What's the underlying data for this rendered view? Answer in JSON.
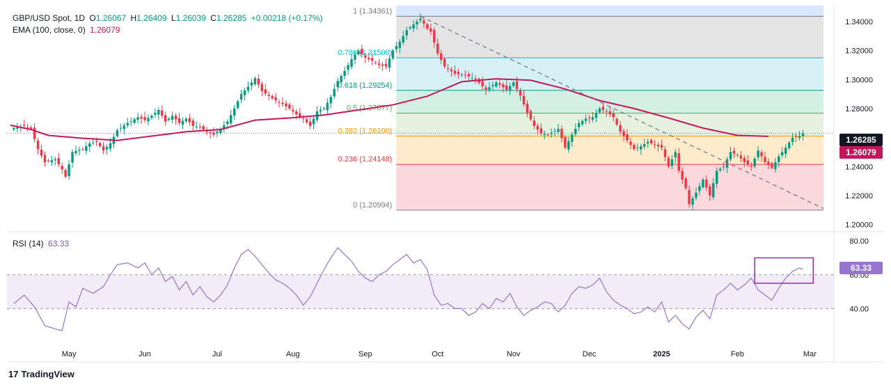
{
  "header": {
    "symbol": "GBP/USD Spot, 1D",
    "open_label": "O",
    "open": "1.26067",
    "high_label": "H",
    "high": "1.26409",
    "low_label": "L",
    "low": "1.26039",
    "close_label": "C",
    "close": "1.26285",
    "change": "+0.00218 (+0.17%)",
    "ema_label": "EMA (100, close, 0)",
    "ema_value": "1.26079"
  },
  "rsi_header": {
    "label": "RSI (14)",
    "value": "63.33"
  },
  "footer": {
    "logo_glyph": "17",
    "brand": "TradingView"
  },
  "colors": {
    "up": "#089981",
    "down": "#f23645",
    "ema": "#c2185b",
    "rsi": "#9575cd",
    "trendline": "#787b86"
  },
  "chart_data": [
    {
      "type": "candlestick",
      "title": "GBP/USD Spot, 1D",
      "ylim": [
        1.195,
        1.351
      ],
      "y_ticks": [
        "1.34000",
        "1.32000",
        "1.30000",
        "1.28000",
        "1.26000",
        "1.24000",
        "1.22000",
        "1.20000"
      ],
      "y_tick_values": [
        1.34,
        1.32,
        1.3,
        1.28,
        1.26,
        1.24,
        1.22,
        1.2
      ],
      "x_labels": [
        "May",
        "Jun",
        "Jul",
        "Aug",
        "Sep",
        "Oct",
        "Nov",
        "Dec",
        "2025",
        "Feb",
        "Mar"
      ],
      "x_label_index": [
        16,
        38,
        59,
        81,
        102,
        123,
        145,
        167,
        188,
        210,
        231
      ],
      "x_range": [
        -2,
        238
      ],
      "last_price": "1.26285",
      "ema_price_label": "1.26079",
      "fibonacci": {
        "start_index": 111,
        "end_index": 235,
        "levels": [
          {
            "label": "1 (1.34361)",
            "ratio": 1,
            "price": 1.34361,
            "line": "#787b86",
            "fill": "#dbe5fb"
          },
          {
            "label": "0.786 (1.31500)",
            "ratio": 0.786,
            "price": 1.315,
            "line": "#00bcd4",
            "fill": "#e4e4e4"
          },
          {
            "label": "0.618 (1.29254)",
            "ratio": 0.618,
            "price": 1.29254,
            "line": "#089981",
            "fill": "#d5f1f6"
          },
          {
            "label": "0.5 (1.27677)",
            "ratio": 0.5,
            "price": 1.27677,
            "line": "#4caf50",
            "fill": "#d4efe3"
          },
          {
            "label": "0.382 (1.26100)",
            "ratio": 0.382,
            "price": 1.261,
            "line": "#ff9800",
            "fill": "#e5f2e0"
          },
          {
            "label": "0.236 (1.24148)",
            "ratio": 0.236,
            "price": 1.24148,
            "line": "#f23645",
            "fill": "#fdebcc"
          },
          {
            "label": "0 (1.20994)",
            "ratio": 0,
            "price": 1.20994,
            "line": "#787b86",
            "fill": "#fbd8dc"
          }
        ],
        "label_colors": [
          "#787b86",
          "#00bcd4",
          "#089981",
          "#4caf50",
          "#ff9800",
          "#f23645",
          "#787b86"
        ]
      },
      "trendline": {
        "from": [
          118,
          1.3436
        ],
        "to": [
          235,
          1.211
        ]
      },
      "ema_points": [
        [
          -1,
          1.2685
        ],
        [
          5,
          1.2655
        ],
        [
          10,
          1.2615
        ],
        [
          20,
          1.2595
        ],
        [
          30,
          1.258
        ],
        [
          40,
          1.261
        ],
        [
          50,
          1.264
        ],
        [
          60,
          1.2655
        ],
        [
          70,
          1.272
        ],
        [
          80,
          1.2735
        ],
        [
          90,
          1.2755
        ],
        [
          100,
          1.279
        ],
        [
          110,
          1.2825
        ],
        [
          120,
          1.2885
        ],
        [
          130,
          1.2985
        ],
        [
          140,
          1.3005
        ],
        [
          150,
          1.2995
        ],
        [
          160,
          1.2935
        ],
        [
          170,
          1.2855
        ],
        [
          180,
          1.28
        ],
        [
          190,
          1.2735
        ],
        [
          200,
          1.2665
        ],
        [
          210,
          1.2615
        ],
        [
          219,
          1.2608
        ]
      ],
      "close_points": [
        [
          0,
          1.2665
        ],
        [
          3,
          1.268
        ],
        [
          5,
          1.266
        ],
        [
          7,
          1.252
        ],
        [
          9,
          1.243
        ],
        [
          12,
          1.245
        ],
        [
          14,
          1.238
        ],
        [
          15,
          1.233
        ],
        [
          17,
          1.25
        ],
        [
          20,
          1.252
        ],
        [
          22,
          1.256
        ],
        [
          24,
          1.257
        ],
        [
          26,
          1.251
        ],
        [
          28,
          1.256
        ],
        [
          30,
          1.265
        ],
        [
          33,
          1.27
        ],
        [
          36,
          1.274
        ],
        [
          38,
          1.272
        ],
        [
          40,
          1.275
        ],
        [
          42,
          1.279
        ],
        [
          44,
          1.271
        ],
        [
          46,
          1.275
        ],
        [
          48,
          1.27
        ],
        [
          50,
          1.273
        ],
        [
          52,
          1.268
        ],
        [
          54,
          1.267
        ],
        [
          56,
          1.264
        ],
        [
          58,
          1.262
        ],
        [
          60,
          1.266
        ],
        [
          62,
          1.271
        ],
        [
          64,
          1.28
        ],
        [
          66,
          1.29
        ],
        [
          68,
          1.295
        ],
        [
          70,
          1.301
        ],
        [
          72,
          1.292
        ],
        [
          75,
          1.287
        ],
        [
          78,
          1.283
        ],
        [
          80,
          1.28
        ],
        [
          82,
          1.276
        ],
        [
          84,
          1.273
        ],
        [
          86,
          1.268
        ],
        [
          88,
          1.278
        ],
        [
          90,
          1.28
        ],
        [
          92,
          1.288
        ],
        [
          94,
          1.299
        ],
        [
          96,
          1.306
        ],
        [
          98,
          1.314
        ],
        [
          100,
          1.32
        ],
        [
          102,
          1.315
        ],
        [
          104,
          1.313
        ],
        [
          106,
          1.31
        ],
        [
          108,
          1.309
        ],
        [
          110,
          1.32
        ],
        [
          112,
          1.326
        ],
        [
          114,
          1.334
        ],
        [
          116,
          1.338
        ],
        [
          118,
          1.342
        ],
        [
          120,
          1.335
        ],
        [
          121,
          1.333
        ],
        [
          123,
          1.318
        ],
        [
          125,
          1.309
        ],
        [
          128,
          1.304
        ],
        [
          131,
          1.303
        ],
        [
          134,
          1.3
        ],
        [
          137,
          1.293
        ],
        [
          140,
          1.298
        ],
        [
          143,
          1.293
        ],
        [
          145,
          1.298
        ],
        [
          147,
          1.289
        ],
        [
          149,
          1.277
        ],
        [
          151,
          1.268
        ],
        [
          153,
          1.263
        ],
        [
          155,
          1.262
        ],
        [
          158,
          1.266
        ],
        [
          160,
          1.253
        ],
        [
          162,
          1.262
        ],
        [
          164,
          1.27
        ],
        [
          166,
          1.273
        ],
        [
          168,
          1.274
        ],
        [
          170,
          1.28
        ],
        [
          172,
          1.278
        ],
        [
          174,
          1.274
        ],
        [
          176,
          1.264
        ],
        [
          178,
          1.258
        ],
        [
          180,
          1.252
        ],
        [
          182,
          1.254
        ],
        [
          184,
          1.257
        ],
        [
          186,
          1.255
        ],
        [
          188,
          1.253
        ],
        [
          190,
          1.24
        ],
        [
          192,
          1.25
        ],
        [
          193,
          1.237
        ],
        [
          195,
          1.225
        ],
        [
          196,
          1.214
        ],
        [
          198,
          1.222
        ],
        [
          200,
          1.231
        ],
        [
          202,
          1.22
        ],
        [
          204,
          1.237
        ],
        [
          206,
          1.24
        ],
        [
          208,
          1.25
        ],
        [
          210,
          1.248
        ],
        [
          212,
          1.243
        ],
        [
          214,
          1.24
        ],
        [
          216,
          1.251
        ],
        [
          218,
          1.243
        ],
        [
          220,
          1.239
        ],
        [
          222,
          1.247
        ],
        [
          224,
          1.253
        ],
        [
          226,
          1.26
        ],
        [
          228,
          1.261
        ],
        [
          229,
          1.2629
        ]
      ],
      "rsi": {
        "label": "RSI (14)",
        "value": "63.33",
        "ylim": [
          20,
          85
        ],
        "y_ticks": [
          "80.00",
          "60.00",
          "40.00"
        ],
        "y_tick_values": [
          80,
          60,
          40
        ],
        "upper": 70,
        "lower": 30,
        "points": [
          [
            0,
            43
          ],
          [
            3,
            48
          ],
          [
            6,
            41
          ],
          [
            9,
            30
          ],
          [
            12,
            28
          ],
          [
            14,
            27
          ],
          [
            16,
            44
          ],
          [
            18,
            41
          ],
          [
            20,
            52
          ],
          [
            23,
            49
          ],
          [
            26,
            53
          ],
          [
            28,
            60
          ],
          [
            30,
            66
          ],
          [
            33,
            67
          ],
          [
            36,
            64
          ],
          [
            38,
            67
          ],
          [
            40,
            60
          ],
          [
            42,
            64
          ],
          [
            44,
            56
          ],
          [
            46,
            59
          ],
          [
            48,
            51
          ],
          [
            50,
            56
          ],
          [
            52,
            48
          ],
          [
            54,
            53
          ],
          [
            56,
            47
          ],
          [
            58,
            44
          ],
          [
            60,
            48
          ],
          [
            62,
            54
          ],
          [
            64,
            64
          ],
          [
            66,
            72
          ],
          [
            68,
            75
          ],
          [
            70,
            71
          ],
          [
            72,
            66
          ],
          [
            74,
            61
          ],
          [
            76,
            57
          ],
          [
            78,
            55
          ],
          [
            80,
            52
          ],
          [
            82,
            48
          ],
          [
            84,
            42
          ],
          [
            86,
            47
          ],
          [
            88,
            55
          ],
          [
            90,
            63
          ],
          [
            92,
            70
          ],
          [
            94,
            76
          ],
          [
            96,
            72
          ],
          [
            98,
            68
          ],
          [
            100,
            62
          ],
          [
            102,
            58
          ],
          [
            104,
            56
          ],
          [
            106,
            60
          ],
          [
            108,
            62
          ],
          [
            110,
            66
          ],
          [
            112,
            69
          ],
          [
            114,
            72
          ],
          [
            116,
            67
          ],
          [
            118,
            69
          ],
          [
            120,
            63
          ],
          [
            122,
            48
          ],
          [
            124,
            42
          ],
          [
            126,
            43
          ],
          [
            128,
            40
          ],
          [
            130,
            40
          ],
          [
            132,
            36
          ],
          [
            134,
            38
          ],
          [
            136,
            43
          ],
          [
            138,
            40
          ],
          [
            140,
            46
          ],
          [
            142,
            44
          ],
          [
            144,
            49
          ],
          [
            146,
            41
          ],
          [
            148,
            36
          ],
          [
            150,
            39
          ],
          [
            152,
            41
          ],
          [
            154,
            44
          ],
          [
            156,
            43
          ],
          [
            158,
            38
          ],
          [
            160,
            42
          ],
          [
            162,
            49
          ],
          [
            164,
            53
          ],
          [
            166,
            52
          ],
          [
            168,
            54
          ],
          [
            170,
            58
          ],
          [
            172,
            50
          ],
          [
            174,
            45
          ],
          [
            176,
            42
          ],
          [
            178,
            40
          ],
          [
            180,
            37
          ],
          [
            182,
            38
          ],
          [
            184,
            41
          ],
          [
            186,
            38
          ],
          [
            188,
            44
          ],
          [
            190,
            32
          ],
          [
            192,
            36
          ],
          [
            194,
            31
          ],
          [
            196,
            28
          ],
          [
            198,
            35
          ],
          [
            200,
            39
          ],
          [
            202,
            34
          ],
          [
            204,
            48
          ],
          [
            206,
            51
          ],
          [
            208,
            55
          ],
          [
            210,
            51
          ],
          [
            212,
            54
          ],
          [
            214,
            58
          ],
          [
            216,
            51
          ],
          [
            218,
            48
          ],
          [
            220,
            45
          ],
          [
            222,
            52
          ],
          [
            224,
            58
          ],
          [
            226,
            62
          ],
          [
            228,
            64
          ],
          [
            229,
            63.33
          ]
        ],
        "highlight_box": {
          "from_index": 215,
          "to_index": 232,
          "rsi_top": 70,
          "rsi_bottom": 55
        }
      }
    }
  ]
}
